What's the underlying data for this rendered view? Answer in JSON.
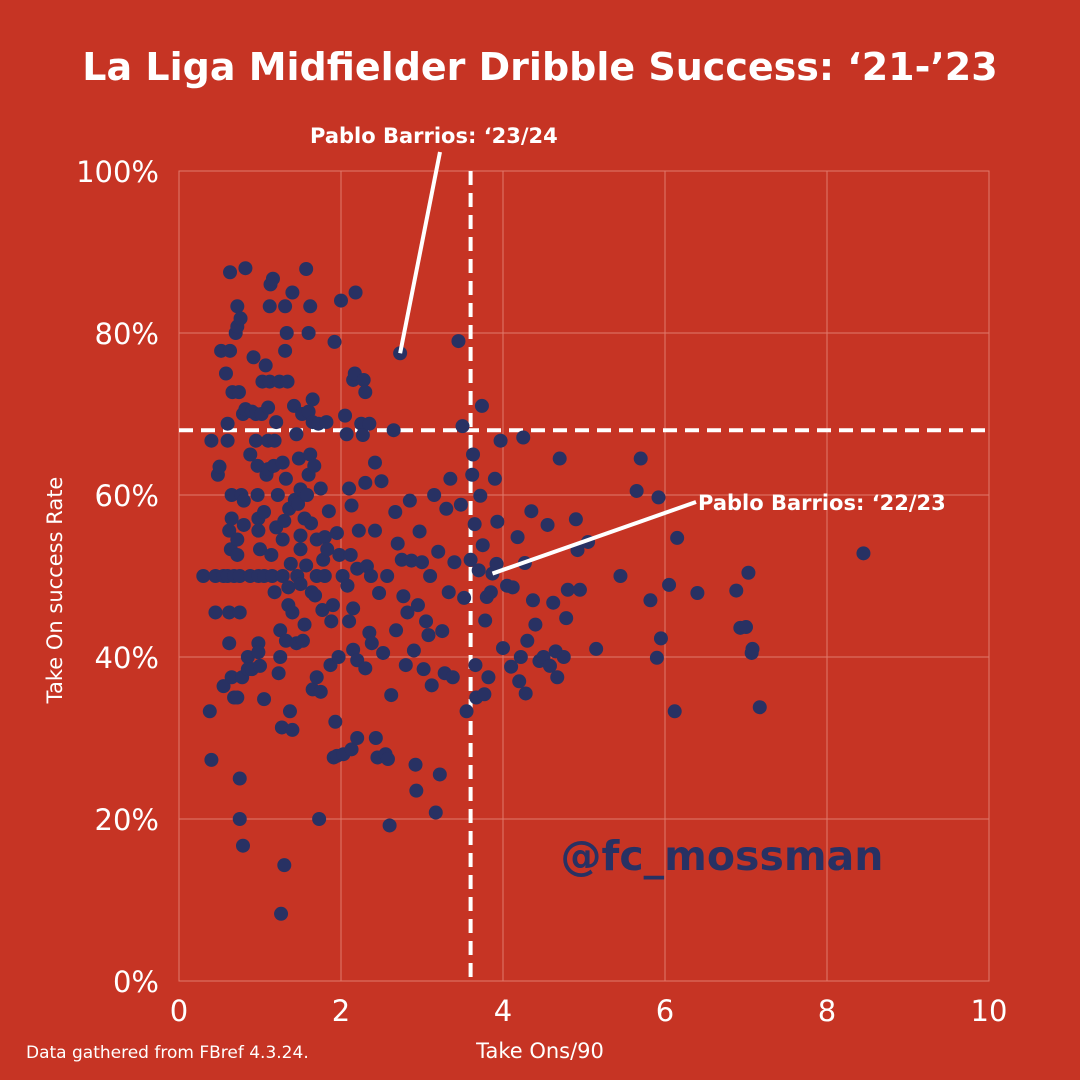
{
  "chart_data": {
    "type": "scatter",
    "title": "La Liga Midfielder Dribble Success: ‘21-’23",
    "xlabel": "Take Ons/90",
    "ylabel": "Take On success Rate",
    "xlim": [
      0,
      10
    ],
    "ylim": [
      0,
      100
    ],
    "x_ticks": [
      0,
      2,
      4,
      6,
      8,
      10
    ],
    "y_ticks": [
      0,
      20,
      40,
      60,
      80,
      100
    ],
    "x_tick_labels": [
      "0",
      "2",
      "4",
      "6",
      "8",
      "10"
    ],
    "y_tick_labels": [
      "0%",
      "20%",
      "40%",
      "60%",
      "80%",
      "100%"
    ],
    "grid": true,
    "marker_color": "#283163",
    "background_color": "#c63424",
    "reference_lines": {
      "x": 3.6,
      "y": 68
    },
    "annotations": [
      {
        "text": "Pablo Barrios: ‘23/24",
        "point": [
          2.73,
          77.5
        ]
      },
      {
        "text": "Pablo Barrios: ‘22/23",
        "point": [
          3.87,
          50.3
        ]
      }
    ],
    "points": [
      [
        0.3,
        50
      ],
      [
        0.38,
        33.3
      ],
      [
        0.4,
        27.3
      ],
      [
        0.4,
        66.7
      ],
      [
        0.45,
        45.5
      ],
      [
        0.45,
        50
      ],
      [
        0.48,
        62.5
      ],
      [
        0.5,
        63.5
      ],
      [
        0.52,
        77.8
      ],
      [
        0.55,
        36.4
      ],
      [
        0.55,
        50
      ],
      [
        0.58,
        75
      ],
      [
        0.6,
        68.8
      ],
      [
        0.6,
        66.7
      ],
      [
        0.6,
        50
      ],
      [
        0.62,
        55.6
      ],
      [
        0.62,
        41.7
      ],
      [
        0.62,
        45.5
      ],
      [
        0.63,
        87.5
      ],
      [
        0.63,
        77.8
      ],
      [
        0.64,
        53.3
      ],
      [
        0.65,
        60
      ],
      [
        0.65,
        57.1
      ],
      [
        0.65,
        37.5
      ],
      [
        0.66,
        72.7
      ],
      [
        0.68,
        50
      ],
      [
        0.68,
        35
      ],
      [
        0.7,
        80
      ],
      [
        0.72,
        80.8
      ],
      [
        0.72,
        83.3
      ],
      [
        0.72,
        54.5
      ],
      [
        0.72,
        52.6
      ],
      [
        0.72,
        35
      ],
      [
        0.74,
        72.7
      ],
      [
        0.75,
        25
      ],
      [
        0.75,
        20
      ],
      [
        0.75,
        45.5
      ],
      [
        0.75,
        50
      ],
      [
        0.76,
        81.8
      ],
      [
        0.77,
        60
      ],
      [
        0.78,
        37.5
      ],
      [
        0.79,
        16.7
      ],
      [
        0.79,
        70
      ],
      [
        0.8,
        59.3
      ],
      [
        0.8,
        56.3
      ],
      [
        0.82,
        88
      ],
      [
        0.82,
        70.6
      ],
      [
        0.85,
        40
      ],
      [
        0.85,
        38.5
      ],
      [
        0.88,
        50
      ],
      [
        0.88,
        65
      ],
      [
        0.9,
        70.3
      ],
      [
        0.9,
        38.5
      ],
      [
        0.92,
        77
      ],
      [
        0.95,
        70
      ],
      [
        0.95,
        66.7
      ],
      [
        0.97,
        63.6
      ],
      [
        0.97,
        60
      ],
      [
        0.98,
        57.1
      ],
      [
        0.98,
        55.6
      ],
      [
        0.98,
        50
      ],
      [
        0.98,
        41.7
      ],
      [
        0.98,
        40.6
      ],
      [
        1.0,
        38.9
      ],
      [
        1.0,
        53.3
      ],
      [
        1.02,
        70
      ],
      [
        1.03,
        74
      ],
      [
        1.05,
        57.9
      ],
      [
        1.05,
        50
      ],
      [
        1.05,
        34.8
      ],
      [
        1.07,
        76
      ],
      [
        1.08,
        62.5
      ],
      [
        1.1,
        63.2
      ],
      [
        1.1,
        70.8
      ],
      [
        1.1,
        66.7
      ],
      [
        1.12,
        74
      ],
      [
        1.12,
        83.3
      ],
      [
        1.13,
        86
      ],
      [
        1.14,
        52.6
      ],
      [
        1.15,
        50
      ],
      [
        1.16,
        86.7
      ],
      [
        1.17,
        63.6
      ],
      [
        1.18,
        48
      ],
      [
        1.18,
        66.7
      ],
      [
        1.2,
        69
      ],
      [
        1.2,
        56
      ],
      [
        1.22,
        60
      ],
      [
        1.23,
        38
      ],
      [
        1.24,
        74
      ],
      [
        1.25,
        43.3
      ],
      [
        1.25,
        40
      ],
      [
        1.26,
        8.3
      ],
      [
        1.27,
        31.3
      ],
      [
        1.28,
        64
      ],
      [
        1.28,
        54.5
      ],
      [
        1.28,
        50
      ],
      [
        1.3,
        56.8
      ],
      [
        1.3,
        14.3
      ],
      [
        1.31,
        77.8
      ],
      [
        1.31,
        83.3
      ],
      [
        1.32,
        62
      ],
      [
        1.32,
        42
      ],
      [
        1.33,
        80
      ],
      [
        1.34,
        74
      ],
      [
        1.35,
        48.6
      ],
      [
        1.35,
        46.4
      ],
      [
        1.36,
        58.3
      ],
      [
        1.37,
        33.3
      ],
      [
        1.38,
        51.5
      ],
      [
        1.4,
        85
      ],
      [
        1.4,
        45.5
      ],
      [
        1.4,
        31
      ],
      [
        1.42,
        71
      ],
      [
        1.43,
        59.4
      ],
      [
        1.45,
        67.5
      ],
      [
        1.45,
        41.7
      ],
      [
        1.46,
        50
      ],
      [
        1.47,
        58.9
      ],
      [
        1.48,
        64.5
      ],
      [
        1.5,
        60.7
      ],
      [
        1.5,
        55
      ],
      [
        1.5,
        53.3
      ],
      [
        1.5,
        49
      ],
      [
        1.52,
        70
      ],
      [
        1.53,
        42
      ],
      [
        1.55,
        44
      ],
      [
        1.55,
        57.1
      ],
      [
        1.57,
        87.9
      ],
      [
        1.57,
        51.3
      ],
      [
        1.58,
        60
      ],
      [
        1.6,
        62.5
      ],
      [
        1.6,
        70.3
      ],
      [
        1.6,
        80
      ],
      [
        1.62,
        83.3
      ],
      [
        1.62,
        65
      ],
      [
        1.63,
        56.5
      ],
      [
        1.64,
        48
      ],
      [
        1.65,
        69
      ],
      [
        1.65,
        71.8
      ],
      [
        1.65,
        36
      ],
      [
        1.67,
        63.6
      ],
      [
        1.68,
        47.6
      ],
      [
        1.7,
        37.5
      ],
      [
        1.7,
        54.5
      ],
      [
        1.7,
        50
      ],
      [
        1.72,
        68.8
      ],
      [
        1.73,
        20
      ],
      [
        1.75,
        35.7
      ],
      [
        1.75,
        60.8
      ],
      [
        1.77,
        45.8
      ],
      [
        1.78,
        52
      ],
      [
        1.8,
        54.8
      ],
      [
        1.8,
        50
      ],
      [
        1.82,
        69
      ],
      [
        1.83,
        53.3
      ],
      [
        1.85,
        58
      ],
      [
        1.87,
        39
      ],
      [
        1.88,
        44.4
      ],
      [
        1.9,
        46.4
      ],
      [
        1.91,
        27.6
      ],
      [
        1.92,
        78.9
      ],
      [
        1.93,
        32
      ],
      [
        1.95,
        55.3
      ],
      [
        1.95,
        27.8
      ],
      [
        1.97,
        40
      ],
      [
        1.98,
        52.6
      ],
      [
        2.0,
        84
      ],
      [
        2.02,
        50
      ],
      [
        2.03,
        28
      ],
      [
        2.05,
        69.8
      ],
      [
        2.07,
        67.5
      ],
      [
        2.08,
        48.8
      ],
      [
        2.1,
        44.4
      ],
      [
        2.1,
        60.8
      ],
      [
        2.12,
        52.6
      ],
      [
        2.13,
        58.7
      ],
      [
        2.13,
        28.6
      ],
      [
        2.15,
        74.2
      ],
      [
        2.15,
        46
      ],
      [
        2.15,
        40.9
      ],
      [
        2.17,
        75
      ],
      [
        2.18,
        85
      ],
      [
        2.2,
        30
      ],
      [
        2.2,
        50.9
      ],
      [
        2.2,
        39.6
      ],
      [
        2.22,
        55.6
      ],
      [
        2.25,
        68.8
      ],
      [
        2.27,
        67.4
      ],
      [
        2.28,
        74.2
      ],
      [
        2.3,
        72.7
      ],
      [
        2.3,
        61.5
      ],
      [
        2.3,
        38.6
      ],
      [
        2.32,
        51.2
      ],
      [
        2.35,
        68.8
      ],
      [
        2.35,
        43
      ],
      [
        2.37,
        50
      ],
      [
        2.38,
        41.7
      ],
      [
        2.42,
        55.6
      ],
      [
        2.42,
        64
      ],
      [
        2.43,
        30
      ],
      [
        2.45,
        27.6
      ],
      [
        2.47,
        47.9
      ],
      [
        2.5,
        61.7
      ],
      [
        2.52,
        40.5
      ],
      [
        2.55,
        28
      ],
      [
        2.57,
        50
      ],
      [
        2.58,
        27.4
      ],
      [
        2.6,
        19.2
      ],
      [
        2.62,
        35.3
      ],
      [
        2.65,
        68
      ],
      [
        2.67,
        57.9
      ],
      [
        2.68,
        43.3
      ],
      [
        2.7,
        54
      ],
      [
        2.73,
        77.5
      ],
      [
        2.75,
        52
      ],
      [
        2.77,
        47.5
      ],
      [
        2.8,
        39
      ],
      [
        2.82,
        45.5
      ],
      [
        2.85,
        59.3
      ],
      [
        2.87,
        51.9
      ],
      [
        2.9,
        40.8
      ],
      [
        2.92,
        26.7
      ],
      [
        2.93,
        23.5
      ],
      [
        2.95,
        46.4
      ],
      [
        2.97,
        55.5
      ],
      [
        3.0,
        51.7
      ],
      [
        3.02,
        38.5
      ],
      [
        3.05,
        44.4
      ],
      [
        3.08,
        42.7
      ],
      [
        3.1,
        50
      ],
      [
        3.12,
        36.5
      ],
      [
        3.15,
        60
      ],
      [
        3.17,
        20.8
      ],
      [
        3.2,
        53
      ],
      [
        3.22,
        25.5
      ],
      [
        3.25,
        43.2
      ],
      [
        3.28,
        38
      ],
      [
        3.3,
        58.3
      ],
      [
        3.33,
        48
      ],
      [
        3.35,
        62
      ],
      [
        3.38,
        37.5
      ],
      [
        3.4,
        51.7
      ],
      [
        3.45,
        79
      ],
      [
        3.48,
        58.8
      ],
      [
        3.5,
        68.5
      ],
      [
        3.52,
        47.3
      ],
      [
        3.55,
        33.3
      ],
      [
        3.6,
        52
      ],
      [
        3.62,
        62.5
      ],
      [
        3.63,
        65
      ],
      [
        3.65,
        56.4
      ],
      [
        3.66,
        39
      ],
      [
        3.67,
        35
      ],
      [
        3.7,
        50.7
      ],
      [
        3.72,
        59.9
      ],
      [
        3.74,
        71
      ],
      [
        3.75,
        53.8
      ],
      [
        3.77,
        35.4
      ],
      [
        3.78,
        44.5
      ],
      [
        3.8,
        47.4
      ],
      [
        3.82,
        37.5
      ],
      [
        3.85,
        48
      ],
      [
        3.87,
        50.3
      ],
      [
        3.9,
        62
      ],
      [
        3.92,
        51.5
      ],
      [
        3.93,
        56.7
      ],
      [
        3.97,
        66.7
      ],
      [
        4.0,
        41.1
      ],
      [
        4.05,
        48.8
      ],
      [
        4.1,
        38.8
      ],
      [
        4.12,
        48.6
      ],
      [
        4.18,
        54.8
      ],
      [
        4.2,
        37
      ],
      [
        4.22,
        40
      ],
      [
        4.25,
        67.1
      ],
      [
        4.27,
        51.6
      ],
      [
        4.28,
        35.5
      ],
      [
        4.3,
        42
      ],
      [
        4.35,
        58
      ],
      [
        4.37,
        47
      ],
      [
        4.4,
        44
      ],
      [
        4.45,
        39.5
      ],
      [
        4.5,
        40
      ],
      [
        4.55,
        56.3
      ],
      [
        4.58,
        38.9
      ],
      [
        4.62,
        46.7
      ],
      [
        4.65,
        40.7
      ],
      [
        4.67,
        37.5
      ],
      [
        4.7,
        64.5
      ],
      [
        4.75,
        40
      ],
      [
        4.78,
        44.8
      ],
      [
        4.8,
        48.3
      ],
      [
        4.9,
        57
      ],
      [
        4.92,
        53.2
      ],
      [
        4.95,
        48.3
      ],
      [
        5.05,
        54.2
      ],
      [
        5.15,
        41
      ],
      [
        5.45,
        50
      ],
      [
        5.65,
        60.5
      ],
      [
        5.7,
        64.5
      ],
      [
        5.82,
        47
      ],
      [
        5.9,
        39.9
      ],
      [
        5.92,
        59.7
      ],
      [
        5.95,
        42.3
      ],
      [
        6.05,
        48.9
      ],
      [
        6.12,
        33.3
      ],
      [
        6.15,
        54.7
      ],
      [
        6.4,
        47.9
      ],
      [
        6.88,
        48.2
      ],
      [
        6.93,
        43.6
      ],
      [
        7.0,
        43.7
      ],
      [
        7.03,
        50.4
      ],
      [
        7.07,
        40.5
      ],
      [
        7.08,
        41
      ],
      [
        7.17,
        33.8
      ],
      [
        8.45,
        52.8
      ]
    ]
  },
  "watermark": "@fc_mossman",
  "source_note": "Data gathered from FBref 4.3.24."
}
